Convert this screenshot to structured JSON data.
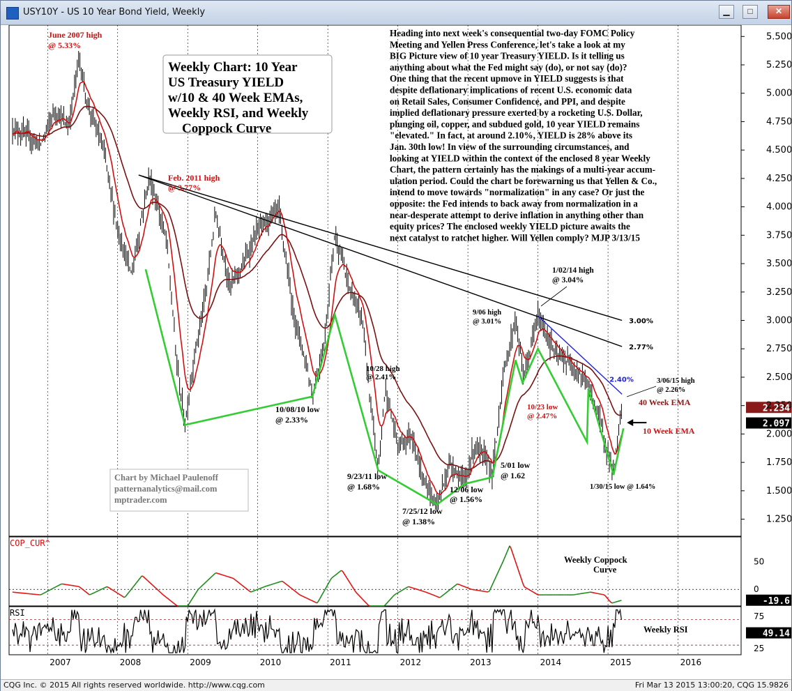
{
  "window": {
    "title": "USY10Y - US 10 Year Bond Yield, Weekly"
  },
  "status": {
    "left": "CQG Inc. © 2015 All rights reserved worldwide. http://www.cqg.com",
    "right": "Fri Mar 13 2015 13:00:20, CQG 15.9826"
  },
  "chart_data": [
    {
      "type": "line",
      "panel": "price",
      "title_box": [
        "Weekly Chart: 10 Year",
        "US Treasury YIELD",
        "w/10 & 40 Week EMAs,",
        "Weekly RSI, and Weekly",
        "Coppock Curve"
      ],
      "ylim": [
        1.1,
        5.6
      ],
      "yticks": [
        "5.500",
        "5.250",
        "5.000",
        "4.750",
        "4.500",
        "4.250",
        "4.000",
        "3.750",
        "3.500",
        "3.250",
        "3.000",
        "2.750",
        "2.500",
        "2.250",
        "2.000",
        "1.750",
        "1.500",
        "1.250"
      ],
      "xticks": [
        "2007",
        "2008",
        "2009",
        "2010",
        "2011",
        "2012",
        "2013",
        "2014",
        "2015",
        "2016"
      ],
      "price_anchors": [
        [
          2006.5,
          4.7
        ],
        [
          2006.9,
          4.55
        ],
        [
          2007.1,
          4.85
        ],
        [
          2007.3,
          4.7
        ],
        [
          2007.45,
          5.33
        ],
        [
          2007.55,
          4.95
        ],
        [
          2007.8,
          4.5
        ],
        [
          2008.0,
          3.8
        ],
        [
          2008.2,
          3.4
        ],
        [
          2008.45,
          4.27
        ],
        [
          2008.7,
          3.7
        ],
        [
          2008.85,
          2.6
        ],
        [
          2008.96,
          2.08
        ],
        [
          2009.1,
          2.7
        ],
        [
          2009.25,
          3.2
        ],
        [
          2009.4,
          3.95
        ],
        [
          2009.6,
          3.3
        ],
        [
          2009.8,
          3.5
        ],
        [
          2010.0,
          3.8
        ],
        [
          2010.3,
          3.98
        ],
        [
          2010.5,
          3.1
        ],
        [
          2010.7,
          2.6
        ],
        [
          2010.78,
          2.33
        ],
        [
          2010.95,
          2.8
        ],
        [
          2011.1,
          3.77
        ],
        [
          2011.3,
          3.3
        ],
        [
          2011.5,
          3.0
        ],
        [
          2011.6,
          2.3
        ],
        [
          2011.72,
          1.68
        ],
        [
          2011.82,
          2.41
        ],
        [
          2012.0,
          1.9
        ],
        [
          2012.2,
          2.0
        ],
        [
          2012.35,
          1.6
        ],
        [
          2012.56,
          1.38
        ],
        [
          2012.75,
          1.75
        ],
        [
          2012.95,
          1.56
        ],
        [
          2013.1,
          1.9
        ],
        [
          2013.3,
          1.75
        ],
        [
          2013.35,
          1.62
        ],
        [
          2013.5,
          2.5
        ],
        [
          2013.68,
          3.01
        ],
        [
          2013.8,
          2.5
        ],
        [
          2014.0,
          3.04
        ],
        [
          2014.25,
          2.7
        ],
        [
          2014.5,
          2.6
        ],
        [
          2014.7,
          2.45
        ],
        [
          2014.85,
          2.2
        ],
        [
          2015.08,
          1.64
        ],
        [
          2015.15,
          2.0
        ],
        [
          2015.2,
          2.26
        ],
        [
          2015.21,
          2.1
        ]
      ],
      "series": [
        {
          "name": "40 Week EMA",
          "color": "#7a1010",
          "last_value": "2.234"
        },
        {
          "name": "10 Week EMA",
          "color": "#d01010",
          "last_value": "2.097"
        }
      ],
      "trendlines": [
        {
          "label": "3.00%",
          "from": [
            2008.3,
            4.28
          ],
          "to": [
            2015.2,
            3.0
          ]
        },
        {
          "label": "2.77%",
          "from": [
            2008.3,
            4.28
          ],
          "to": [
            2015.2,
            2.77
          ]
        },
        {
          "label": "2.40%",
          "color": "#2020e0",
          "from": [
            2014.0,
            3.04
          ],
          "to": [
            2015.2,
            2.35
          ]
        }
      ],
      "swing_lines": [
        [
          2008.4,
          3.45
        ],
        [
          2008.96,
          2.08
        ],
        [
          2010.78,
          2.33
        ],
        [
          2011.1,
          3.05
        ],
        [
          2011.72,
          1.68
        ],
        [
          2012.56,
          1.38
        ],
        [
          2012.95,
          1.56
        ],
        [
          2013.35,
          1.62
        ],
        [
          2013.68,
          2.65
        ],
        [
          2013.78,
          2.45
        ],
        [
          2014.0,
          2.75
        ],
        [
          2014.7,
          1.93
        ],
        [
          2014.72,
          2.4
        ],
        [
          2015.08,
          1.64
        ],
        [
          2015.22,
          2.05
        ]
      ],
      "annotations": {
        "june2007_high": [
          "June 2007 high",
          "@ 5.33%"
        ],
        "feb2011_high": "Feb. 2011 high",
        "feb2011_val": "@ 3.77%",
        "low_101008": [
          "10/08/10 low",
          "@ 2.33%"
        ],
        "high_102811": [
          "10/28 high",
          "@ 2.41%"
        ],
        "low_92311": [
          "9/23/11 low",
          "@ 1.68%"
        ],
        "low_72512": [
          "7/25/12 low",
          "@ 1.38%"
        ],
        "low_120612": [
          "12/06 low",
          "@ 1.56%"
        ],
        "low_0501": [
          "5/01 low",
          "@ 1.62"
        ],
        "high_0906": [
          "9/06 high",
          "@ 3.01%"
        ],
        "high_10214": [
          "1/02/14 high",
          "@ 3.04%"
        ],
        "low_1023": [
          "10/23 low",
          "@ 2.47%"
        ],
        "high_30615": [
          "3/06/15 high",
          "@ 2.26%"
        ],
        "low_13015": "1/30/15 low @ 1.64%",
        "ema40": "40 Week EMA",
        "ema10": "10 Week EMA",
        "credit": [
          "Chart by Michael Paulenoff",
          "patternanalytics@mail.com",
          "mptrader.com"
        ]
      },
      "commentary": [
        "Heading into next week's consequential two-day FOMC Policy",
        "Meeting and Yellen Press Conference, let's take a look at my",
        "BIG Picture view of 10 year Treasury YIELD. Is it telling us",
        "anything about what the Fed might say (do), or not say (do)?",
        "One thing that the recent upmove in YIELD suggests is that",
        "despite deflationary implications of recent U.S. economic data",
        "on Retail Sales, Consumer Confidence, and PPI, and despite",
        "implied deflationary pressure exerted by a rocketing U.S. Dollar,",
        "plunging oil, copper, and subdued gold, 10 year YIELD remains",
        "\"elevated.\" In fact, at around 2.10%, YIELD is 28% above its",
        "Jan. 30th low!  In view of the surrounding circumstances, and",
        "looking at YIELD within the context of the enclosed 8 year Weekly",
        "Chart, the pattern certainly has the makings of a multi-year accum-",
        "ulation period. Could the chart be forewarning us that Yellen & Co.,",
        "intend to move towards \"normalization\" in any case? Or just the",
        "opposite: the Fed intends to back away from normalization in a",
        "near-desperate attempt to derive inflation in anything other than",
        "equity prices? The enclosed weekly YIELD picture awaits the",
        "next catalyst to ratchet higher. Will Yellen comply? MJP  3/13/15"
      ]
    },
    {
      "type": "line",
      "panel": "coppock",
      "label": "COP_CUR^",
      "title": [
        "Weekly Coppock",
        "Curve"
      ],
      "ylim": [
        -30,
        95
      ],
      "yticks": [
        "50",
        "0"
      ],
      "last_value": "-19.6",
      "colors": {
        "up": "#1a8a1a",
        "down": "#e01010"
      },
      "anchors": [
        [
          2006.5,
          -5
        ],
        [
          2006.9,
          -10
        ],
        [
          2007.2,
          10
        ],
        [
          2007.45,
          5
        ],
        [
          2007.6,
          -10
        ],
        [
          2007.85,
          5
        ],
        [
          2008.1,
          -15
        ],
        [
          2008.35,
          25
        ],
        [
          2008.65,
          -10
        ],
        [
          2008.95,
          -40
        ],
        [
          2009.15,
          0
        ],
        [
          2009.4,
          30
        ],
        [
          2009.65,
          20
        ],
        [
          2009.9,
          -5
        ],
        [
          2010.1,
          5
        ],
        [
          2010.35,
          15
        ],
        [
          2010.6,
          -10
        ],
        [
          2010.85,
          -25
        ],
        [
          2011.05,
          20
        ],
        [
          2011.2,
          35
        ],
        [
          2011.4,
          -5
        ],
        [
          2011.7,
          -45
        ],
        [
          2011.95,
          -10
        ],
        [
          2012.15,
          5
        ],
        [
          2012.4,
          -5
        ],
        [
          2012.6,
          -15
        ],
        [
          2012.85,
          10
        ],
        [
          2013.05,
          0
        ],
        [
          2013.3,
          -5
        ],
        [
          2013.5,
          50
        ],
        [
          2013.6,
          80
        ],
        [
          2013.8,
          5
        ],
        [
          2014.0,
          -10
        ],
        [
          2014.2,
          -10
        ],
        [
          2014.5,
          -10
        ],
        [
          2014.75,
          -5
        ],
        [
          2014.95,
          -10
        ],
        [
          2015.05,
          -25
        ],
        [
          2015.2,
          -19.6
        ]
      ]
    },
    {
      "type": "line",
      "panel": "rsi",
      "label": "RSI",
      "title": "Weekly RSI",
      "ylim": [
        15,
        90
      ],
      "yticks": [
        "75",
        "50",
        "25"
      ],
      "last_value": "49.14",
      "reference_lines": [
        70,
        30
      ]
    }
  ]
}
